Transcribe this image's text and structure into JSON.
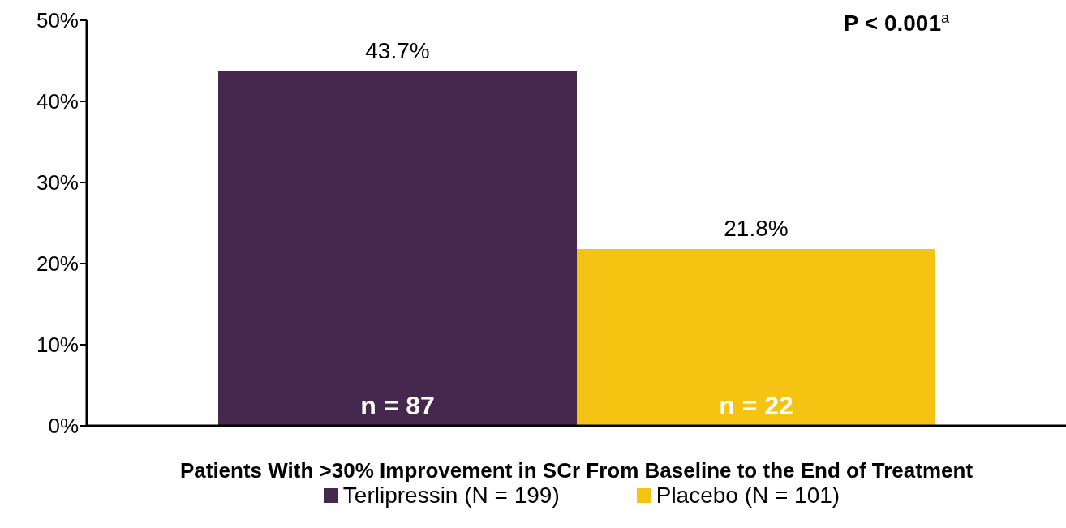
{
  "chart_data": {
    "type": "bar",
    "categories": [
      null
    ],
    "xlabel": "Patients With >30% Improvement in SCr From Baseline to the End of Treatment",
    "series": [
      {
        "name": "Terlipressin (N = 199)",
        "color": "#46284f",
        "values": [
          43.7
        ],
        "value_labels": [
          "43.7%"
        ]
      },
      {
        "name": "Placebo (N = 101)",
        "color": "#f5c412",
        "values": [
          21.8
        ],
        "value_labels": [
          "21.8%"
        ]
      }
    ],
    "ylim": [
      0,
      50
    ],
    "yticks": [
      {
        "value": 0,
        "label": "0%"
      },
      {
        "value": 10,
        "label": "10%"
      },
      {
        "value": 20,
        "label": "20%"
      },
      {
        "value": 30,
        "label": "30%"
      },
      {
        "value": 40,
        "label": "40%"
      },
      {
        "value": 50,
        "label": "50%"
      }
    ],
    "annotations": [
      "P < 0.001$^{a}$",
      "n = 87",
      "n = 22"
    ],
    "grid": false,
    "legend": "bottom"
  }
}
